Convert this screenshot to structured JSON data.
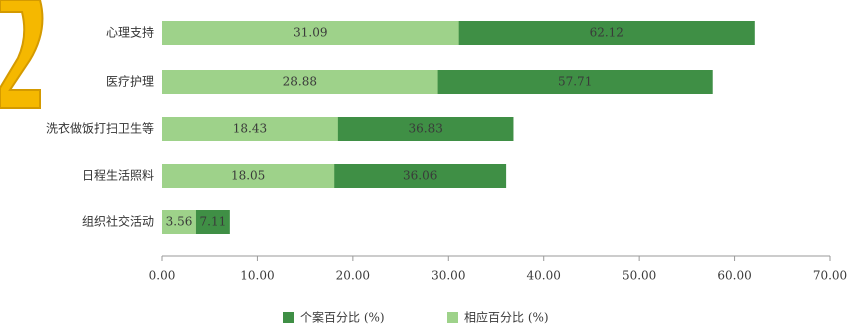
{
  "chart_data": {
    "type": "bar",
    "orientation": "horizontal",
    "overlap": true,
    "categories": [
      "心理支持",
      "医疗护理",
      "洗衣做饭打扫卫生等",
      "日程生活照料",
      "组织社交活动"
    ],
    "series": [
      {
        "name": "个案百分比 (%)",
        "color": "#3f8f45",
        "values": [
          62.12,
          57.71,
          36.83,
          36.06,
          7.11
        ]
      },
      {
        "name": "相应百分比 (%)",
        "color": "#9ed28a",
        "values": [
          31.09,
          28.88,
          18.43,
          18.05,
          3.56
        ]
      }
    ],
    "xlim": [
      0,
      70
    ],
    "xticks": [
      {
        "value": 0,
        "label": "0.00"
      },
      {
        "value": 10,
        "label": "10.00"
      },
      {
        "value": 20,
        "label": "20.00"
      },
      {
        "value": 30,
        "label": "30.00"
      },
      {
        "value": 40,
        "label": "40.00"
      },
      {
        "value": 50,
        "label": "50.00"
      },
      {
        "value": 60,
        "label": "60.00"
      },
      {
        "value": 70,
        "label": "70.00"
      }
    ],
    "legend": "bottom"
  }
}
